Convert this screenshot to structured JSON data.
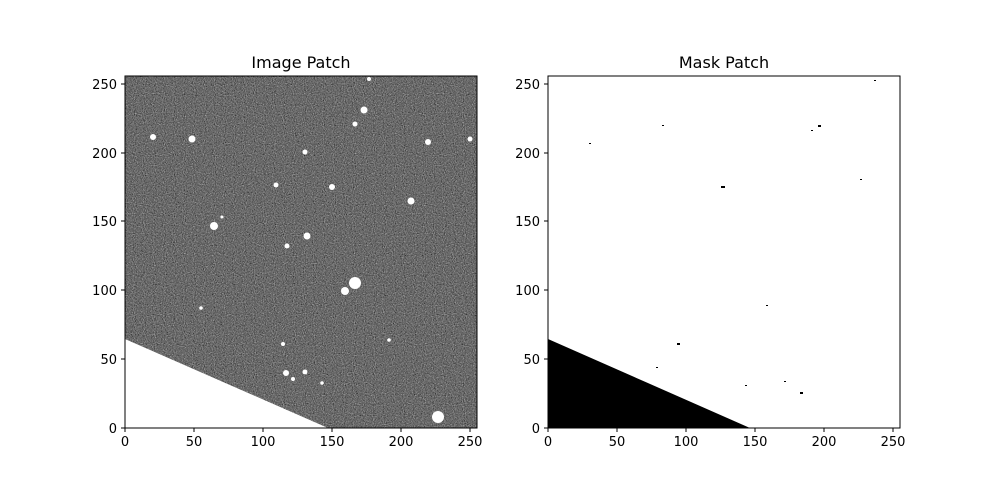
{
  "panels": [
    {
      "title": "Image Patch",
      "x_ticks": [
        "0",
        "50",
        "100",
        "150",
        "200",
        "250"
      ],
      "y_ticks": [
        "0",
        "50",
        "100",
        "150",
        "200",
        "250"
      ],
      "x_range": [
        0,
        256
      ],
      "y_range": [
        0,
        256
      ],
      "colors": {
        "background": "#404040",
        "masked_region": "#ffffff",
        "sources": "#ffffff"
      }
    },
    {
      "title": "Mask Patch",
      "x_ticks": [
        "0",
        "50",
        "100",
        "150",
        "200",
        "250"
      ],
      "y_ticks": [
        "0",
        "50",
        "100",
        "150",
        "200",
        "250"
      ],
      "x_range": [
        0,
        256
      ],
      "y_range": [
        0,
        256
      ],
      "colors": {
        "background": "#ffffff",
        "masked_region": "#000000",
        "specks": "#000000"
      }
    }
  ]
}
